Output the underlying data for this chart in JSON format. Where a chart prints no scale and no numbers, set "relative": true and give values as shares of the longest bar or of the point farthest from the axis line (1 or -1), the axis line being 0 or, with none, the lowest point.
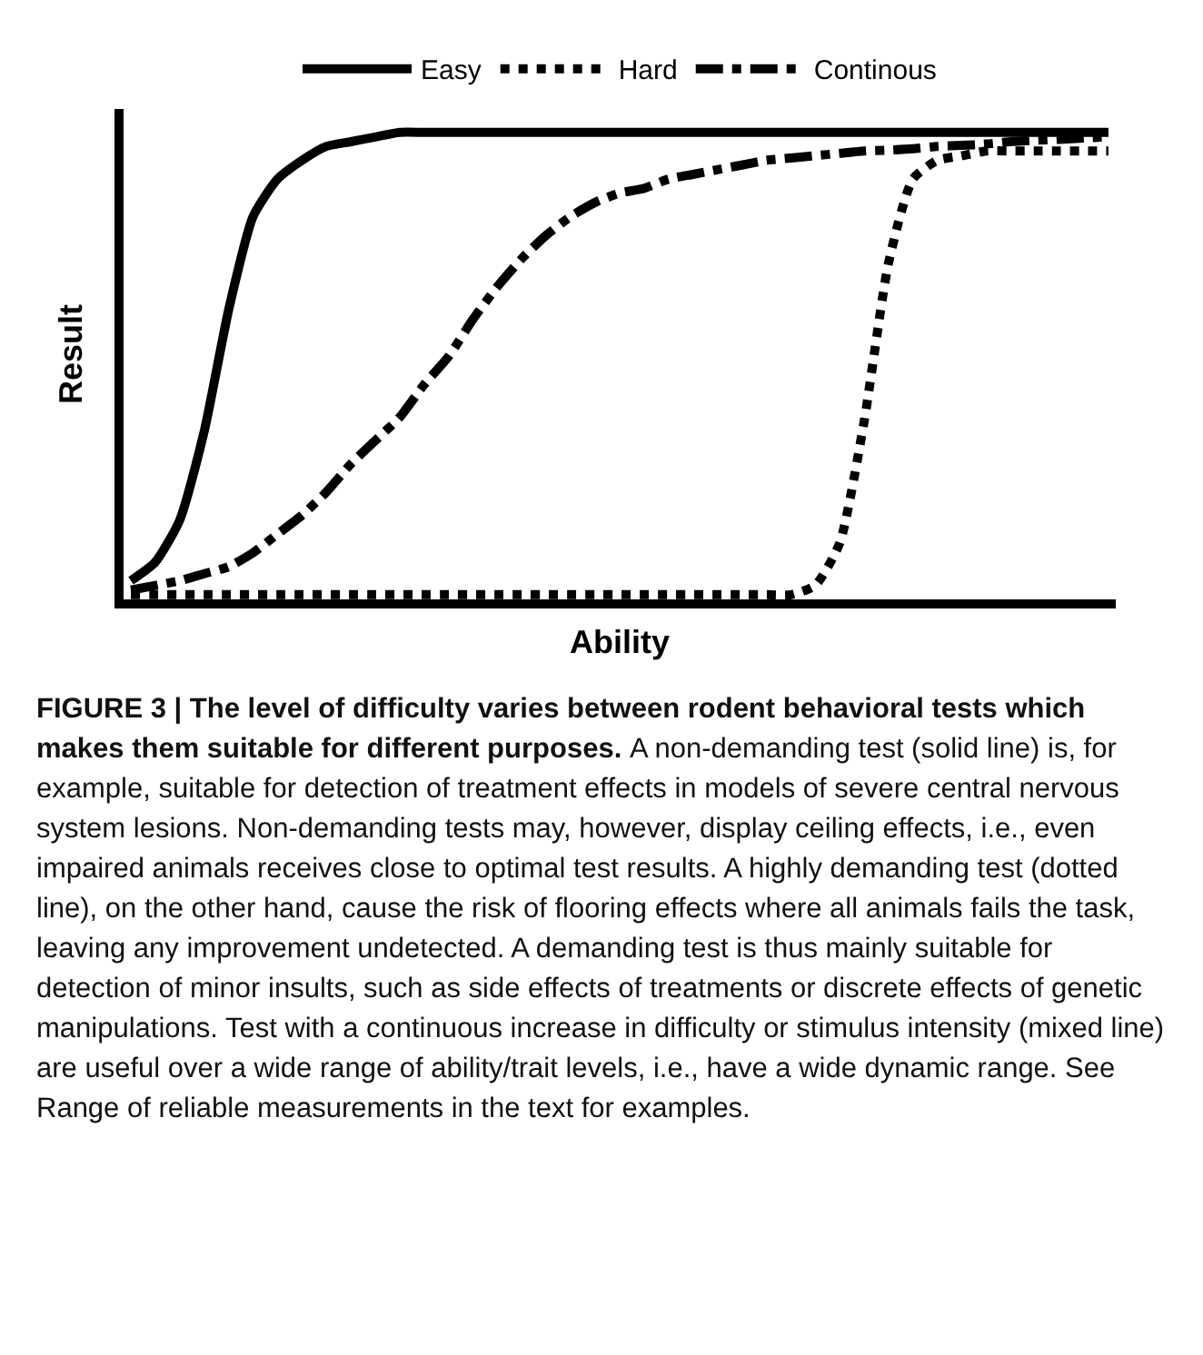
{
  "chart_data": {
    "type": "line",
    "relative": true,
    "xlabel": "Ability",
    "ylabel": "Result",
    "legend": "top",
    "categories": [
      null,
      null,
      null,
      null,
      null,
      null,
      null,
      null,
      null,
      null,
      null,
      null,
      null,
      null,
      null,
      null,
      null,
      null,
      null,
      null,
      null,
      null,
      null,
      null,
      null,
      null,
      null,
      null,
      null,
      null,
      null,
      null,
      null,
      null,
      null,
      null,
      null,
      null,
      null,
      null,
      null
    ],
    "series": [
      {
        "name": "Easy",
        "color": "#000000",
        "line_style": "solid",
        "values": [
          0.04,
          0.08,
          0.17,
          0.36,
          0.62,
          0.82,
          0.9,
          0.94,
          0.97,
          0.98,
          0.99,
          1,
          1,
          1,
          1,
          1,
          1,
          1,
          1,
          1,
          1,
          1,
          1,
          1,
          1,
          1,
          1,
          1,
          1,
          1,
          1,
          1,
          1,
          1,
          1,
          1,
          1,
          1,
          1,
          1,
          1
        ]
      },
      {
        "name": "Hard",
        "color": "#000000",
        "line_style": "dotted",
        "values": [
          0.01,
          0.01,
          0.01,
          0.01,
          0.01,
          0.01,
          0.01,
          0.01,
          0.01,
          0.01,
          0.01,
          0.01,
          0.01,
          0.01,
          0.01,
          0.01,
          0.01,
          0.01,
          0.01,
          0.01,
          0.01,
          0.01,
          0.01,
          0.01,
          0.01,
          0.01,
          0.01,
          0.01,
          0.03,
          0.12,
          0.38,
          0.72,
          0.9,
          0.94,
          0.95,
          0.96,
          0.96,
          0.96,
          0.96,
          0.96,
          0.96
        ]
      },
      {
        "name": "Continous",
        "color": "#000000",
        "line_style": "dashed",
        "values": [
          0.02,
          0.03,
          0.04,
          0.055,
          0.07,
          0.1,
          0.14,
          0.18,
          0.23,
          0.29,
          0.34,
          0.39,
          0.46,
          0.52,
          0.6,
          0.67,
          0.73,
          0.78,
          0.82,
          0.85,
          0.87,
          0.88,
          0.9,
          0.91,
          0.92,
          0.93,
          0.94,
          0.945,
          0.95,
          0.955,
          0.96,
          0.962,
          0.965,
          0.97,
          0.972,
          0.975,
          0.98,
          0.983,
          0.985,
          0.988,
          0.99
        ]
      }
    ],
    "annotations": [
      "FIGURE 3 | The level of difficulty varies between rodent behavioral tests which makes them suitable for different purposes.",
      "A non-demanding test (solid line) is, for example, suitable for detection of treatment effects in models of severe central nervous system lesions. Non-demanding tests may, however, display ceiling effects, i.e., even impaired animals receives close to optimal test results. A highly demanding test (dotted line), on the other hand, cause the risk of flooring effects where all animals fails the task, leaving any improvement undetected. A demanding test is thus mainly suitable for detection of minor insults, such as side effects of treatments or discrete effects of genetic manipulations. Test with a continuous increase in difficulty or stimulus intensity (mixed line) are useful over a wide range of ability/trait levels, i.e., have a wide dynamic range. See Range of reliable measurements in the text for examples."
    ]
  }
}
